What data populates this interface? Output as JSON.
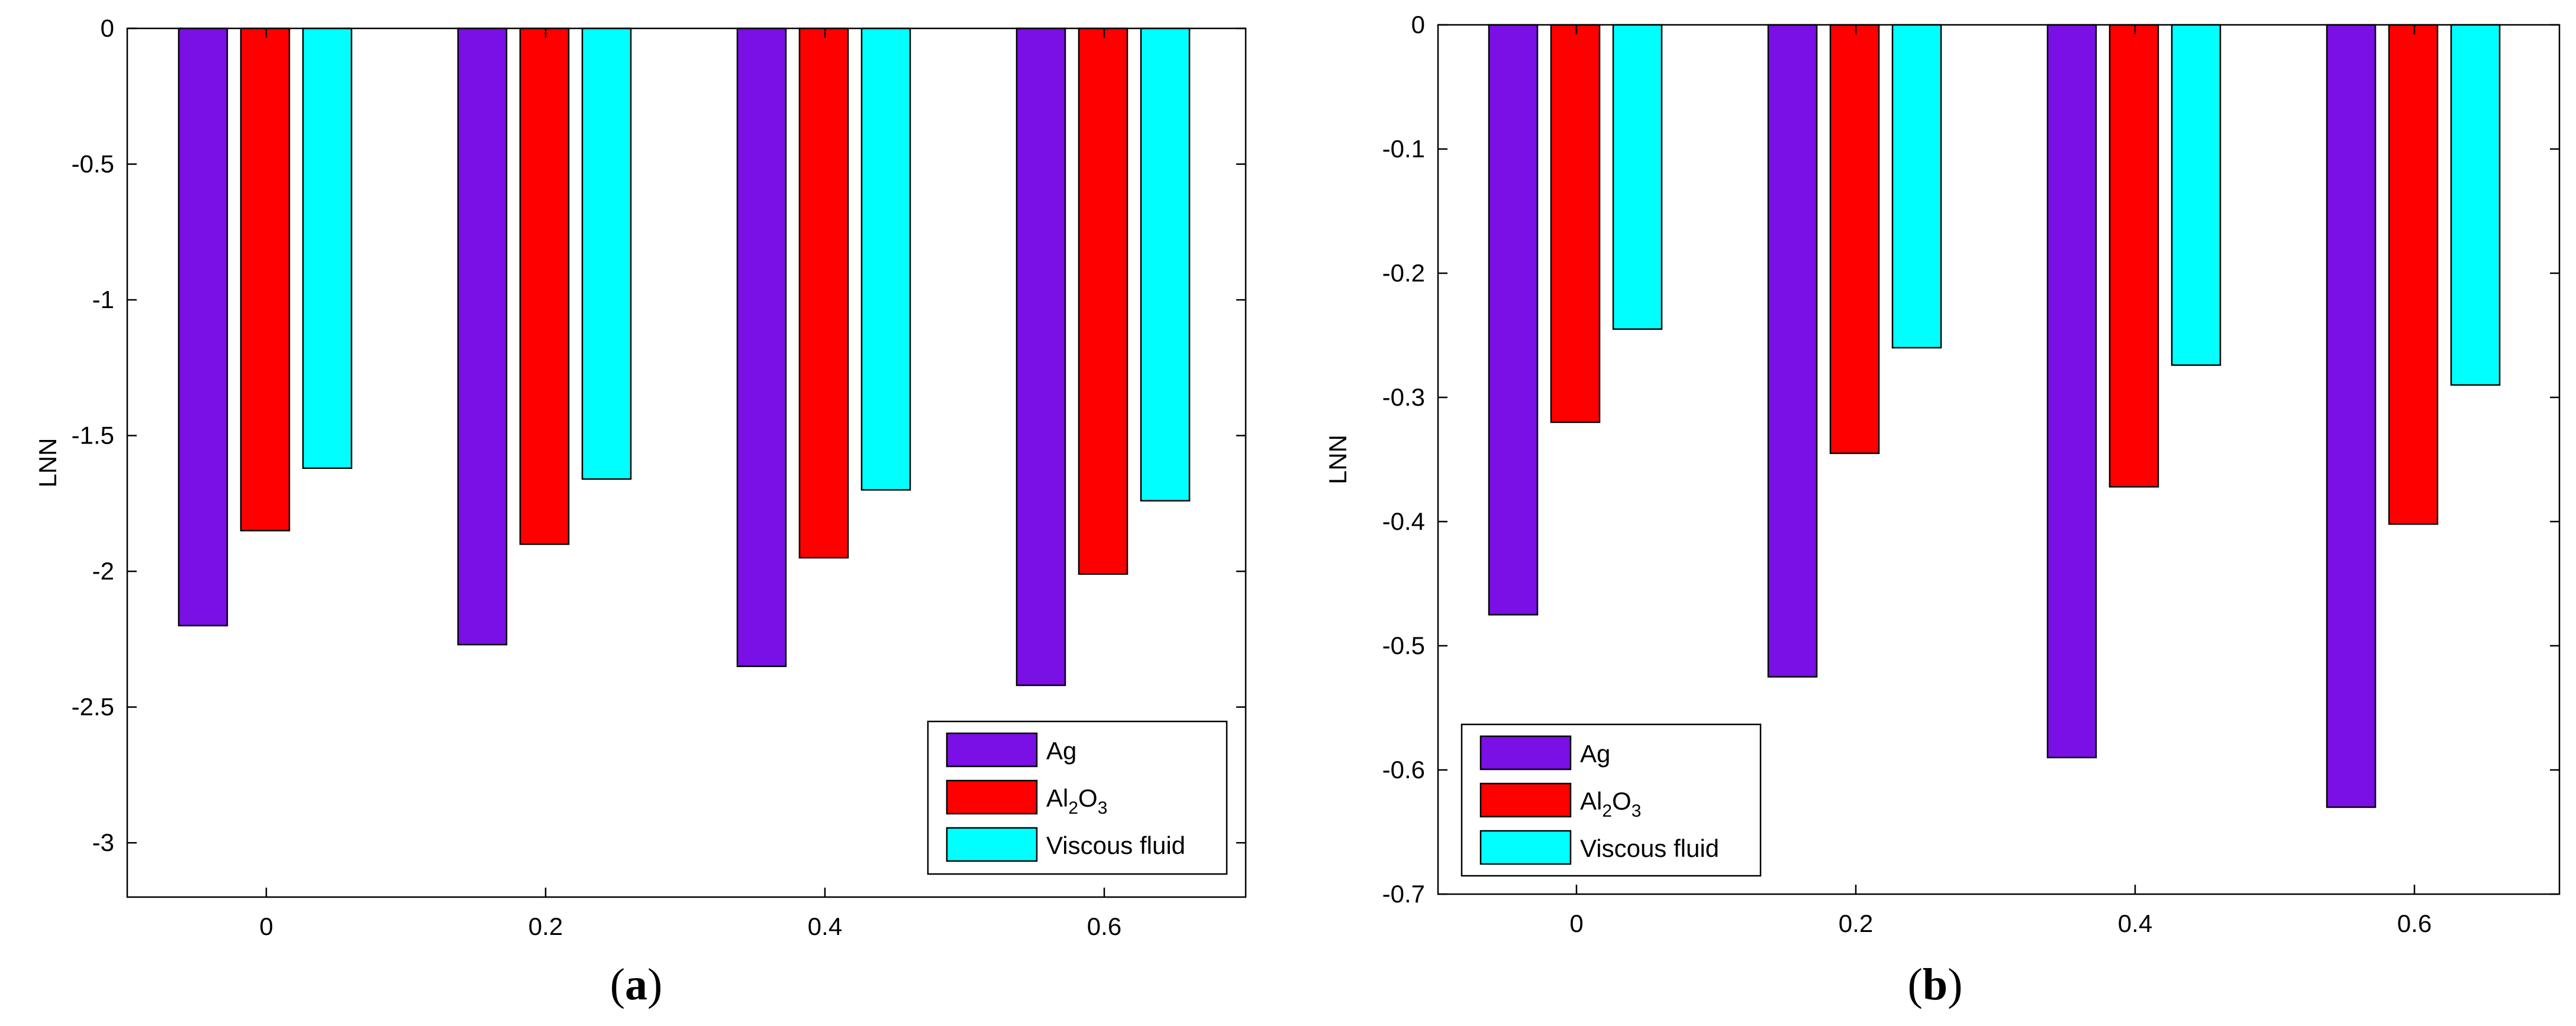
{
  "chart_data": [
    {
      "type": "bar",
      "panel_label": "a",
      "title": "",
      "xlabel": "",
      "ylabel": "LNN",
      "categories": [
        "0",
        "0.2",
        "0.4",
        "0.6"
      ],
      "yticks": [
        "0",
        "-0.5",
        "-1",
        "-1.5",
        "-2",
        "-2.5",
        "-3"
      ],
      "ytick_values": [
        0,
        -0.5,
        -1,
        -1.5,
        -2,
        -2.5,
        -3
      ],
      "ylim": [
        -3.2,
        0
      ],
      "grid": false,
      "legend_position": "bottom-right",
      "series": [
        {
          "name": "Ag",
          "color": "#7a0fe6",
          "values": [
            -2.2,
            -2.27,
            -2.35,
            -2.42
          ]
        },
        {
          "name": "Al2O3",
          "label_main": "Al",
          "label_sub1": "2",
          "label_mid": "O",
          "label_sub2": "3",
          "color": "#ff0000",
          "values": [
            -1.85,
            -1.9,
            -1.95,
            -2.01
          ]
        },
        {
          "name": "Viscous fluid",
          "color": "#00ffff",
          "values": [
            -1.62,
            -1.66,
            -1.7,
            -1.74
          ]
        }
      ]
    },
    {
      "type": "bar",
      "panel_label": "b",
      "title": "",
      "xlabel": "",
      "ylabel": "LNN",
      "categories": [
        "0",
        "0.2",
        "0.4",
        "0.6"
      ],
      "yticks": [
        "0",
        "-0.1",
        "-0.2",
        "-0.3",
        "-0.4",
        "-0.5",
        "-0.6",
        "-0.7"
      ],
      "ytick_values": [
        0,
        -0.1,
        -0.2,
        -0.3,
        -0.4,
        -0.5,
        -0.6,
        -0.7
      ],
      "ylim": [
        -0.7,
        0
      ],
      "grid": false,
      "legend_position": "bottom-left",
      "series": [
        {
          "name": "Ag",
          "color": "#7a0fe6",
          "values": [
            -0.475,
            -0.525,
            -0.59,
            -0.63
          ]
        },
        {
          "name": "Al2O3",
          "label_main": "Al",
          "label_sub1": "2",
          "label_mid": "O",
          "label_sub2": "3",
          "color": "#ff0000",
          "values": [
            -0.32,
            -0.345,
            -0.372,
            -0.402
          ]
        },
        {
          "name": "Viscous fluid",
          "color": "#00ffff",
          "values": [
            -0.245,
            -0.26,
            -0.274,
            -0.29
          ]
        }
      ]
    }
  ]
}
